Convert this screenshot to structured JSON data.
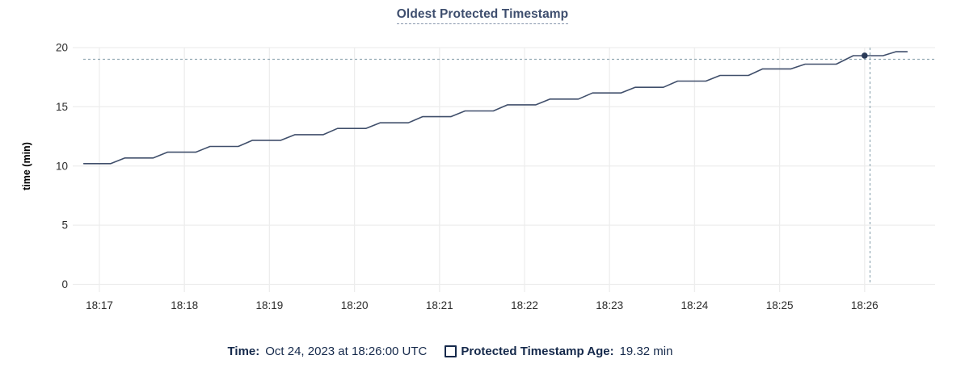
{
  "header": {
    "title": "Oldest Protected Timestamp"
  },
  "chart_data": {
    "type": "line",
    "title": "Oldest Protected Timestamp",
    "xlabel": "",
    "ylabel": "time (min)",
    "ylim": [
      0,
      20
    ],
    "y_ticks": [
      0,
      5,
      10,
      15,
      20
    ],
    "x_tick_labels": [
      "18:17",
      "18:18",
      "18:19",
      "18:20",
      "18:21",
      "18:22",
      "18:23",
      "18:24",
      "18:25",
      "18:26"
    ],
    "x_tick_offsets_sec": [
      0,
      60,
      120,
      180,
      240,
      300,
      360,
      420,
      480,
      540
    ],
    "grid": true,
    "legend_position": "bottom",
    "series": [
      {
        "name": "Protected Timestamp Age",
        "unit": "min",
        "points": [
          [
            -11,
            10.2
          ],
          [
            8,
            10.2
          ],
          [
            18,
            10.68
          ],
          [
            38,
            10.68
          ],
          [
            48,
            11.17
          ],
          [
            68,
            11.17
          ],
          [
            78,
            11.65
          ],
          [
            98,
            11.65
          ],
          [
            108,
            12.17
          ],
          [
            128,
            12.17
          ],
          [
            138,
            12.65
          ],
          [
            158,
            12.65
          ],
          [
            168,
            13.17
          ],
          [
            188,
            13.17
          ],
          [
            198,
            13.65
          ],
          [
            218,
            13.65
          ],
          [
            228,
            14.17
          ],
          [
            248,
            14.17
          ],
          [
            258,
            14.65
          ],
          [
            278,
            14.65
          ],
          [
            288,
            15.17
          ],
          [
            308,
            15.17
          ],
          [
            318,
            15.65
          ],
          [
            338,
            15.65
          ],
          [
            348,
            16.17
          ],
          [
            368,
            16.17
          ],
          [
            378,
            16.65
          ],
          [
            398,
            16.65
          ],
          [
            408,
            17.17
          ],
          [
            428,
            17.17
          ],
          [
            438,
            17.65
          ],
          [
            458,
            17.65
          ],
          [
            468,
            18.2
          ],
          [
            488,
            18.2
          ],
          [
            498,
            18.6
          ],
          [
            520,
            18.6
          ],
          [
            532,
            19.32
          ],
          [
            553,
            19.32
          ],
          [
            562,
            19.65
          ],
          [
            570,
            19.65
          ]
        ]
      }
    ],
    "hover": {
      "time_label": "Oct 24, 2023 at 18:26:00 UTC",
      "time_sec_offset": 540,
      "value_min": 19.32,
      "value_label": "19.32 min"
    }
  },
  "legend": {
    "time_key": "Time:",
    "time_value": "Oct 24, 2023 at 18:26:00 UTC",
    "series_key": "Protected Timestamp Age:",
    "series_value": "19.32 min"
  },
  "colors": {
    "title": "#3e4e6e",
    "title_underline": "#8796ad",
    "legend_text": "#15294b",
    "line": "#404f6b",
    "dot": "#2b3b58",
    "crosshair": "#92a9b3",
    "grid": "#ededed",
    "tick_text": "#2c2c2c"
  }
}
